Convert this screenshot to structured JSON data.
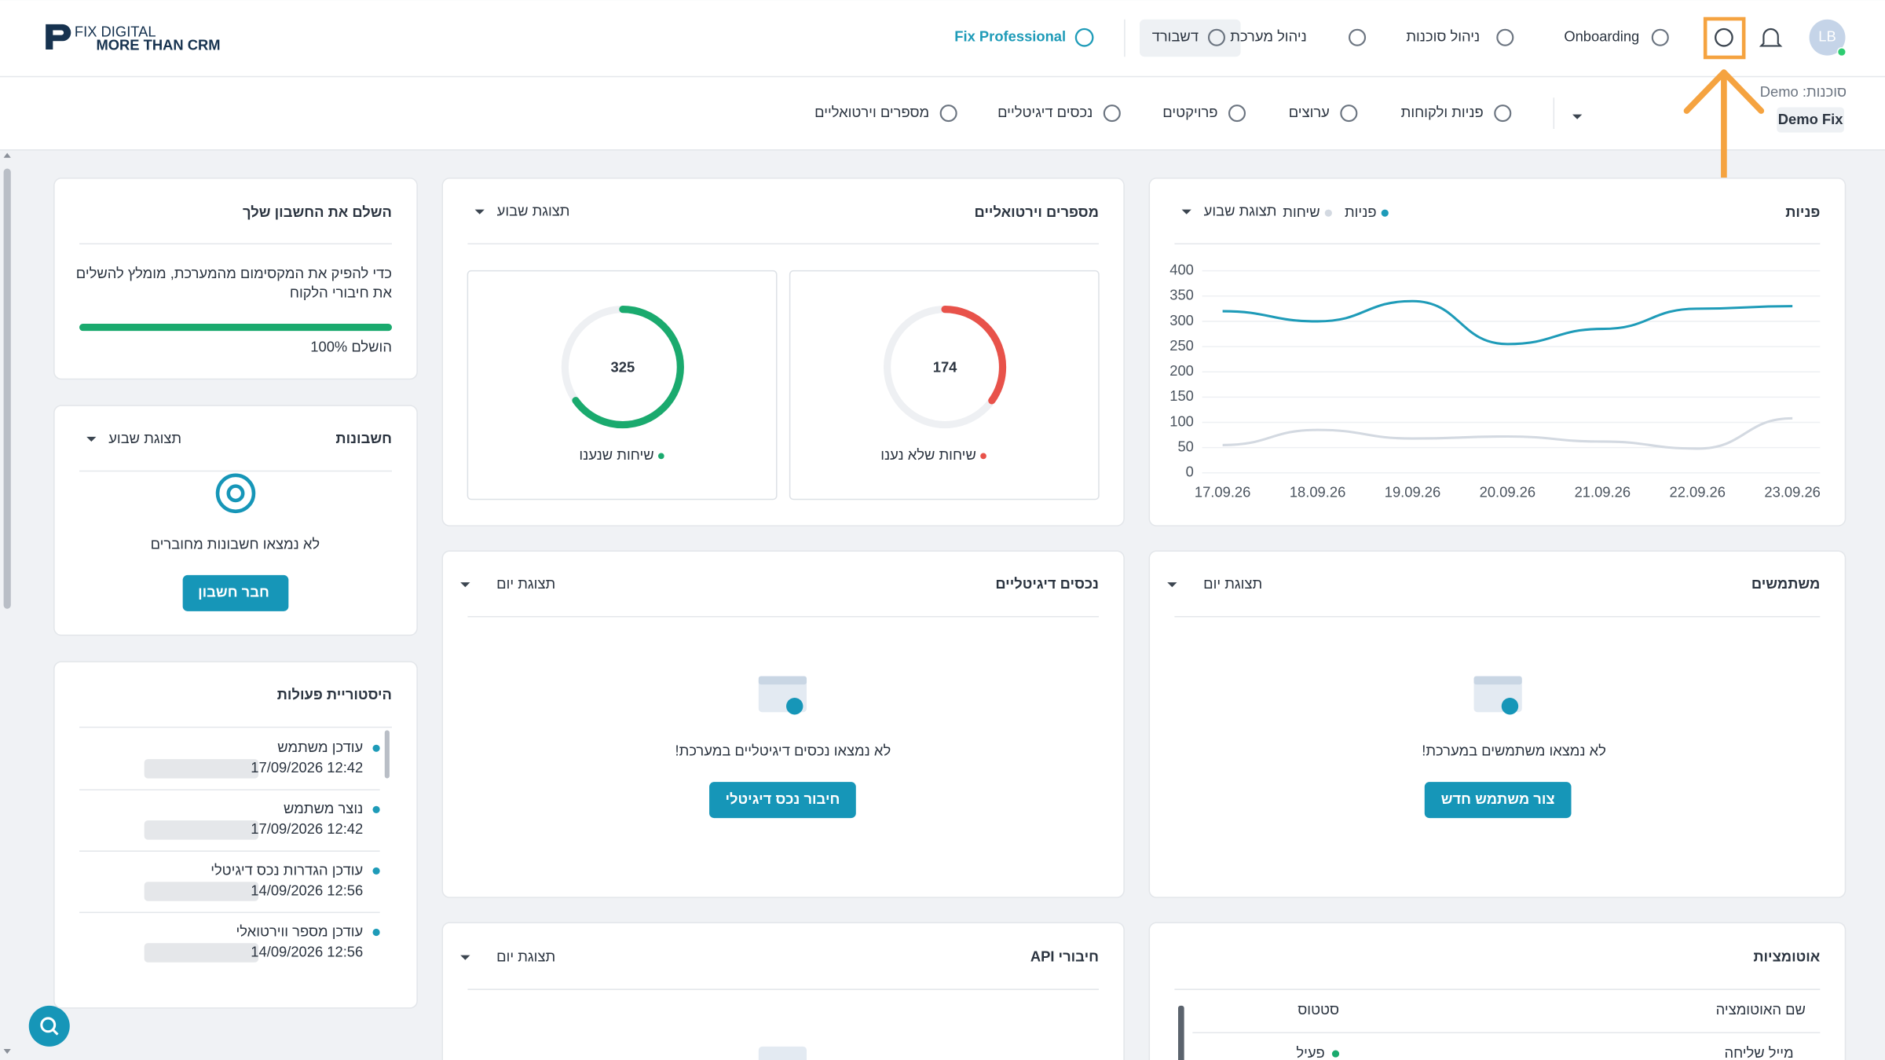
{
  "header": {
    "logo": "FIX DIGITAL",
    "logo_tagline": "MORE THAN CRM",
    "nav": [
      "Fix Professional",
      "דשבורד",
      "ניהול מערכת",
      "ניהול סוכנות",
      "Onboarding"
    ],
    "avatar": "LB"
  },
  "subnav": {
    "items": [
      "מספרים וירטואליים",
      "נכסים דיגיטליים",
      "פרויקטים",
      "ערוצים",
      "פניות ולקוחות"
    ],
    "agency_label": "סוכנות: Demo",
    "agency": "Demo Fix"
  },
  "account_card": {
    "title": "השלם את החשבון שלך",
    "description": [
      "כדי להפיק את המקסימום מהמערכת, מומלץ להשלים",
      "את חיבורי הלקוח"
    ],
    "progress": 100,
    "progress_label": "100% הושלם"
  },
  "accounts_card": {
    "title": "חשבונות",
    "view": "תצוגת שבוע",
    "empty": "לא נמצאו חשבונות מחוברים",
    "button": "חבר חשבון"
  },
  "history_card": {
    "title": "היסטוריית פעולות",
    "items": [
      {
        "action": "עודכן משתמש",
        "date": "17/09/2026 12:42"
      },
      {
        "action": "נוצר משתמש",
        "date": "17/09/2026 12:42"
      },
      {
        "action": "עודכן הגדרות נכס דיגיטלי",
        "date": "14/09/2026 12:56"
      },
      {
        "action": "עודכן מספר ווירטואלי",
        "date": "14/09/2026 12:56"
      }
    ]
  },
  "virtual_numbers_card": {
    "title": "מספרים וירטואליים",
    "view": "תצוגת שבוע",
    "gauges": [
      {
        "value": 325,
        "label": "שיחות שנענו",
        "color": "#1aaa6e"
      },
      {
        "value": 174,
        "label": "שיחות שלא נענו",
        "color": "#e8524a"
      }
    ]
  },
  "leads_card": {
    "title": "פניות",
    "view": "תצוגת שבוע",
    "chart": {
      "type": "line",
      "x": [
        "17.09.26",
        "18.09.26",
        "19.09.26",
        "20.09.26",
        "21.09.26",
        "22.09.26",
        "23.09.26"
      ],
      "series": [
        {
          "name": "פניות",
          "color": "#1e9bb8",
          "values": [
            320,
            300,
            340,
            255,
            285,
            325,
            330
          ]
        },
        {
          "name": "שיחות",
          "color": "#d3d9e1",
          "values": [
            55,
            85,
            68,
            72,
            62,
            48,
            108
          ]
        }
      ],
      "ylim": [
        0,
        400
      ],
      "yticks": [
        0,
        50,
        100,
        150,
        200,
        250,
        300,
        350,
        400
      ],
      "grid": true
    }
  },
  "digital_assets_card": {
    "title": "נכסים דיגיטליים",
    "view": "תצוגת יום",
    "empty": "לא נמצאו נכסים דיגיטליים במערכת!",
    "button": "חיבור נכס דיגיטלי"
  },
  "users_card": {
    "title": "משתמשים",
    "view": "תצוגת יום",
    "empty": "לא נמצאו משתמשים במערכת!",
    "button": "צור משתמש חדש"
  },
  "api_card": {
    "title": "חיבורי API",
    "view": "תצוגת יום"
  },
  "automations_card": {
    "title": "אוטומציות",
    "columns": [
      "שם האוטומציה",
      "סטטוס"
    ],
    "rows": [
      [
        "מייל שליחה",
        "פעיל"
      ]
    ]
  }
}
